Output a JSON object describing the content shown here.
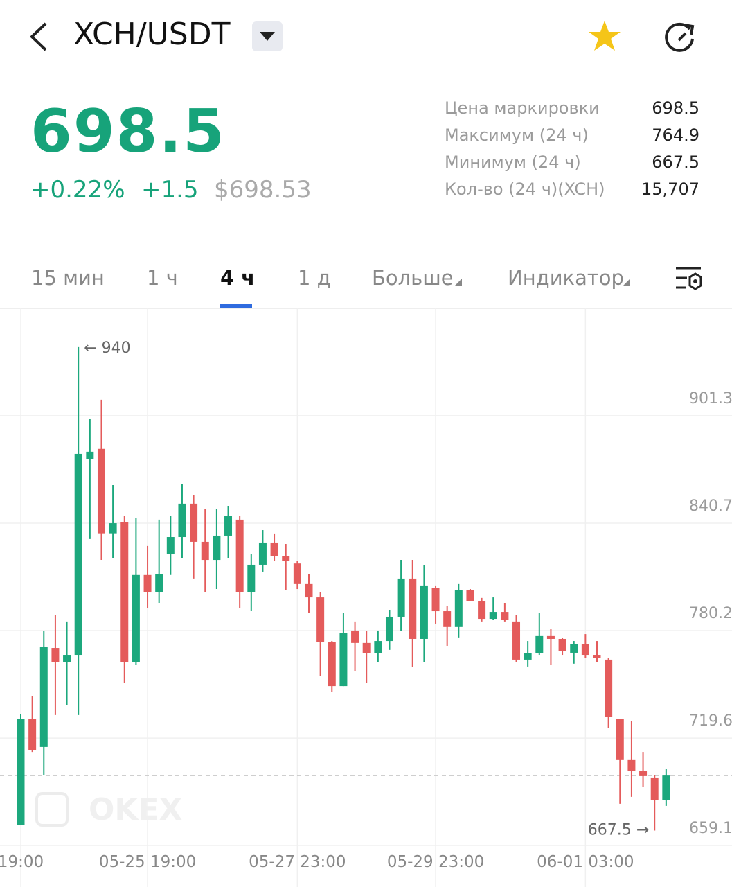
{
  "header": {
    "pair": "XCH/USDT"
  },
  "ticker": {
    "price": "698.5",
    "change_pct": "+0.22%",
    "change_abs": "+1.5",
    "usd_price": "$698.53"
  },
  "stats": [
    {
      "label": "Цена маркировки",
      "value": "698.5"
    },
    {
      "label": "Максимум (24 ч)",
      "value": "764.9"
    },
    {
      "label": "Минимум (24 ч)",
      "value": "667.5"
    },
    {
      "label": "Кол-во (24 ч)(XCH)",
      "value": "15,707"
    }
  ],
  "tabs": [
    "15 мин",
    "1 ч",
    "4 ч",
    "1 д",
    "Больше",
    "Индикатор"
  ],
  "chart_data": {
    "type": "candlestick",
    "watermark": "OKEX",
    "up_color": "#1ca87d",
    "down_color": "#e45b5b",
    "categories": [
      "19:00",
      null,
      null,
      null,
      null,
      null,
      null,
      null,
      null,
      null,
      null,
      "05-25 19:00",
      null,
      null,
      null,
      null,
      null,
      null,
      null,
      null,
      null,
      null,
      null,
      null,
      "05-27 23:00",
      null,
      null,
      null,
      null,
      null,
      null,
      null,
      null,
      null,
      null,
      null,
      "05-29 23:00",
      null,
      null,
      null,
      null,
      null,
      null,
      null,
      null,
      null,
      null,
      null,
      null,
      "06-01 03:00",
      null,
      null,
      null,
      null,
      null,
      null,
      null
    ],
    "open": [
      670.8,
      730.2,
      714.6,
      770.4,
      762.6,
      766.5,
      877.0,
      882.6,
      835.0,
      841.5,
      762.6,
      811.5,
      801.7,
      823.2,
      832.9,
      851.7,
      830.2,
      820.0,
      833.7,
      842.7,
      801.7,
      817.3,
      829.8,
      822.0,
      818.0,
      806.4,
      798.9,
      773.6,
      748.9,
      780.2,
      773.2,
      767.3,
      774.3,
      788.0,
      809.5,
      775.5,
      804.4,
      791.1,
      782.2,
      802.9,
      796.6,
      786.8,
      790.7,
      785.3,
      763.8,
      767.3,
      777.1,
      775.5,
      767.7,
      772.4,
      766.5,
      763.8,
      730.2,
      707.2,
      700.9,
      697.4,
      684.5
    ],
    "high": [
      733.3,
      743.1,
      780.2,
      788.8,
      785.3,
      940,
      899.7,
      910.3,
      862.2,
      844.7,
      843.5,
      827.9,
      842.7,
      844.7,
      863.0,
      856.4,
      848.6,
      848.6,
      850.5,
      844.7,
      823.2,
      836.8,
      834.9,
      829.0,
      819.3,
      812.2,
      801.7,
      774.3,
      790.0,
      785.3,
      780.2,
      780.2,
      791.9,
      820.0,
      820.0,
      817.3,
      805.6,
      793.9,
      806.4,
      803.6,
      798.6,
      798.9,
      795.8,
      788.8,
      774.3,
      790.0,
      781.0,
      776.0,
      774.3,
      778.2,
      774.3,
      764.6,
      730.2,
      729.4,
      711.8,
      698.9,
      702.1
    ],
    "low": [
      670.8,
      711.8,
      698.9,
      732.6,
      738.0,
      732.6,
      831.8,
      820.0,
      821.2,
      750.9,
      760.7,
      792.7,
      795.8,
      811.5,
      821.2,
      809.5,
      801.7,
      803.6,
      821.2,
      792.7,
      791.1,
      813.4,
      819.3,
      802.9,
      803.6,
      790.0,
      754.8,
      745.8,
      748.9,
      757.5,
      750.9,
      762.6,
      769.3,
      780.2,
      759.5,
      762.6,
      784.1,
      771.6,
      776.3,
      796.6,
      785.3,
      786.1,
      785.3,
      762.6,
      759.9,
      766.5,
      760.7,
      766.5,
      761.5,
      764.6,
      762.6,
      725.5,
      682.6,
      686.5,
      692.3,
      667.5,
      681.4
    ],
    "close": [
      730.2,
      713.0,
      771.2,
      762.6,
      766.5,
      879.8,
      881.0,
      835.0,
      840.7,
      762.6,
      811.5,
      801.7,
      812.2,
      832.9,
      851.7,
      830.2,
      820.0,
      833.7,
      844.7,
      801.7,
      817.3,
      829.8,
      822.0,
      819.3,
      806.4,
      798.9,
      773.6,
      748.9,
      779.0,
      773.2,
      767.3,
      774.3,
      788.0,
      809.5,
      775.5,
      805.6,
      791.1,
      782.2,
      802.9,
      796.6,
      786.8,
      790.7,
      786.1,
      763.8,
      767.3,
      777.1,
      775.5,
      768.5,
      772.4,
      766.5,
      764.6,
      731.4,
      707.2,
      700.9,
      698.2,
      684.5,
      698.5
    ],
    "price_line": 698.5,
    "annotations": [
      {
        "value": 940,
        "label": "← 940"
      },
      {
        "value": 667.5,
        "label": "667.5 →"
      }
    ],
    "ylim": [
      659.1,
      961.8
    ],
    "yticks": [
      901.3,
      840.7,
      780.2,
      719.6,
      659.1
    ],
    "grid": true
  }
}
